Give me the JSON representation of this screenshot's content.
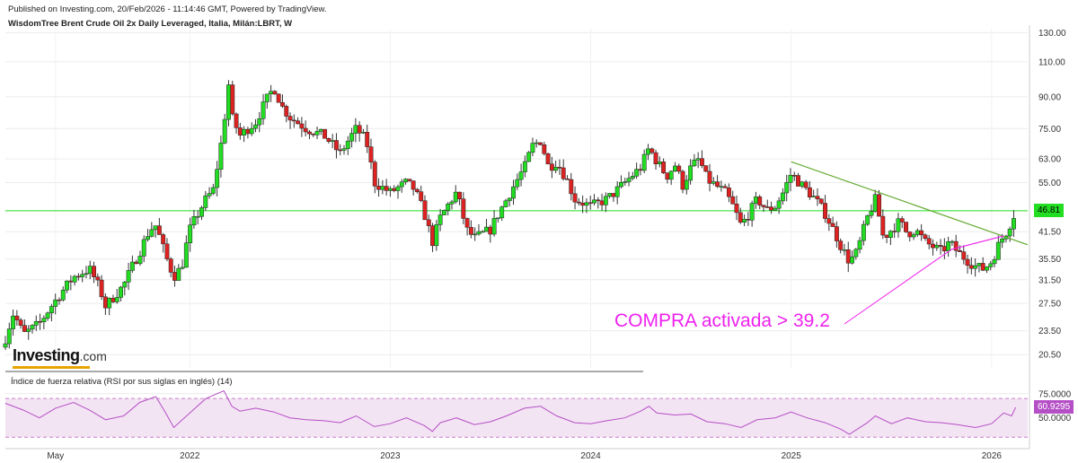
{
  "header": {
    "published": "Published on Investing.com, 20/Feb/2026 - 11:14:46 GMT, Powered by TradingView.",
    "instrument": "WisdomTree Brent Crude Oil 2x Daily Leveraged, Italia, Milán:LBRT, W"
  },
  "logo": {
    "brand": "Investing",
    "dotcom": ".com"
  },
  "annotation": {
    "text": "COMPRA activada > 39.2",
    "color": "#ee22ee"
  },
  "price_badge": "46.81",
  "rsi_badge": "60.9295",
  "rsi_title": "Índice de fuerza relativa (RSI por sus siglas en inglés) (14)",
  "colors": {
    "up": "#22dd22",
    "down": "#dd2222",
    "wick": "#333333",
    "rsi_line": "#b54fc6",
    "rsi_band": "#f3e4f3",
    "hline": "#22dd22",
    "trend_down": "#66aa33",
    "trend_up": "#ee22ee"
  },
  "chart_data": [
    {
      "type": "line",
      "title": "WisdomTree Brent Crude Oil 2x Daily Leveraged, Italia, Milán:LBRT, W",
      "scale": "log",
      "y_ticks": [
        20.5,
        23.5,
        27.5,
        31.5,
        35.5,
        41.5,
        46.81,
        55.0,
        63.0,
        75.0,
        90.0,
        110.0,
        130.0
      ],
      "y_tick_labels": [
        "20.50",
        "23.50",
        "27.50",
        "31.50",
        "35.50",
        "41.50",
        "46.81",
        "55.00",
        "63.00",
        "75.00",
        "90.00",
        "110.00",
        "130.00"
      ],
      "x_tick_labels": [
        "May",
        "2022",
        "2023",
        "2024",
        "2025",
        "2026"
      ],
      "x_tick_times": [
        2021.33,
        2022.0,
        2023.0,
        2024.0,
        2025.0,
        2026.0
      ],
      "x_range": [
        2021.08,
        2026.18
      ],
      "y_range": [
        19.0,
        133.0
      ],
      "series": [
        {
          "values": [
            [
              2021.08,
              22.5
            ],
            [
              2021.12,
              26.0
            ],
            [
              2021.17,
              23.0
            ],
            [
              2021.25,
              24.5
            ],
            [
              2021.33,
              28.0
            ],
            [
              2021.42,
              32.0
            ],
            [
              2021.5,
              33.5
            ],
            [
              2021.55,
              30.0
            ],
            [
              2021.58,
              27.0
            ],
            [
              2021.67,
              30.5
            ],
            [
              2021.75,
              37.0
            ],
            [
              2021.8,
              42.0
            ],
            [
              2021.83,
              43.0
            ],
            [
              2021.88,
              36.0
            ],
            [
              2021.92,
              32.0
            ],
            [
              2021.96,
              34.0
            ],
            [
              2022.0,
              42.0
            ],
            [
              2022.08,
              50.0
            ],
            [
              2022.12,
              53.0
            ],
            [
              2022.17,
              75.0
            ],
            [
              2022.19,
              100.0
            ],
            [
              2022.21,
              80.0
            ],
            [
              2022.25,
              72.0
            ],
            [
              2022.33,
              78.0
            ],
            [
              2022.38,
              88.0
            ],
            [
              2022.42,
              95.0
            ],
            [
              2022.46,
              85.0
            ],
            [
              2022.5,
              80.0
            ],
            [
              2022.58,
              75.0
            ],
            [
              2022.67,
              72.0
            ],
            [
              2022.75,
              65.0
            ],
            [
              2022.83,
              75.0
            ],
            [
              2022.88,
              70.0
            ],
            [
              2022.92,
              55.0
            ],
            [
              2023.0,
              52.0
            ],
            [
              2023.08,
              55.0
            ],
            [
              2023.12,
              53.0
            ],
            [
              2023.17,
              46.0
            ],
            [
              2023.21,
              39.0
            ],
            [
              2023.25,
              45.0
            ],
            [
              2023.33,
              52.0
            ],
            [
              2023.38,
              42.0
            ],
            [
              2023.42,
              40.0
            ],
            [
              2023.5,
              42.0
            ],
            [
              2023.58,
              50.0
            ],
            [
              2023.67,
              60.0
            ],
            [
              2023.71,
              68.0
            ],
            [
              2023.75,
              70.0
            ],
            [
              2023.79,
              60.0
            ],
            [
              2023.83,
              62.0
            ],
            [
              2023.88,
              56.0
            ],
            [
              2023.92,
              50.0
            ],
            [
              2024.0,
              48.0
            ],
            [
              2024.08,
              50.0
            ],
            [
              2024.12,
              52.0
            ],
            [
              2024.17,
              55.0
            ],
            [
              2024.25,
              60.0
            ],
            [
              2024.29,
              67.0
            ],
            [
              2024.33,
              62.0
            ],
            [
              2024.38,
              57.0
            ],
            [
              2024.42,
              61.0
            ],
            [
              2024.46,
              54.0
            ],
            [
              2024.5,
              60.0
            ],
            [
              2024.54,
              63.0
            ],
            [
              2024.58,
              56.0
            ],
            [
              2024.67,
              52.0
            ],
            [
              2024.71,
              48.0
            ],
            [
              2024.75,
              43.0
            ],
            [
              2024.79,
              46.0
            ],
            [
              2024.83,
              50.0
            ],
            [
              2024.88,
              47.0
            ],
            [
              2024.92,
              48.0
            ],
            [
              2024.96,
              52.0
            ],
            [
              2025.0,
              58.0
            ],
            [
              2025.04,
              55.0
            ],
            [
              2025.12,
              50.0
            ],
            [
              2025.17,
              46.0
            ],
            [
              2025.21,
              42.0
            ],
            [
              2025.25,
              38.0
            ],
            [
              2025.29,
              35.0
            ],
            [
              2025.33,
              37.0
            ],
            [
              2025.38,
              45.0
            ],
            [
              2025.42,
              50.0
            ],
            [
              2025.46,
              40.0
            ],
            [
              2025.5,
              42.0
            ],
            [
              2025.54,
              44.0
            ],
            [
              2025.58,
              41.0
            ],
            [
              2025.62,
              42.0
            ],
            [
              2025.67,
              39.0
            ],
            [
              2025.71,
              38.0
            ],
            [
              2025.75,
              37.0
            ],
            [
              2025.79,
              39.0
            ],
            [
              2025.83,
              37.0
            ],
            [
              2025.87,
              35.5
            ],
            [
              2025.92,
              34.0
            ],
            [
              2025.96,
              33.5
            ],
            [
              2026.0,
              35.0
            ],
            [
              2026.04,
              39.0
            ],
            [
              2026.08,
              42.0
            ],
            [
              2026.12,
              46.81
            ]
          ]
        }
      ],
      "horizontal_line": 46.81,
      "trendlines": [
        {
          "name": "downtrend",
          "points": [
            [
              2025.0,
              62.0
            ],
            [
              2026.18,
              38.5
            ]
          ]
        },
        {
          "name": "uptrend",
          "points": [
            [
              2025.8,
              37.5
            ],
            [
              2026.06,
              40.5
            ]
          ]
        }
      ],
      "annotations": [
        "COMPRA activada > 39.2"
      ]
    },
    {
      "type": "line",
      "title": "Índice de fuerza relativa (RSI por sus siglas en inglés) (14)",
      "y_ticks": [
        50.0,
        75.0
      ],
      "y_tick_labels": [
        "50.0000",
        "75.0000"
      ],
      "y_range": [
        20.0,
        85.0
      ],
      "band": [
        30.0,
        70.0
      ],
      "last_value": 60.9295,
      "series": [
        {
          "values": [
            [
              2021.08,
              65
            ],
            [
              2021.17,
              58
            ],
            [
              2021.25,
              50
            ],
            [
              2021.33,
              60
            ],
            [
              2021.42,
              66
            ],
            [
              2021.5,
              58
            ],
            [
              2021.58,
              48
            ],
            [
              2021.67,
              52
            ],
            [
              2021.75,
              66
            ],
            [
              2021.83,
              72
            ],
            [
              2021.88,
              55
            ],
            [
              2021.92,
              40
            ],
            [
              2022.0,
              55
            ],
            [
              2022.08,
              70
            ],
            [
              2022.17,
              78
            ],
            [
              2022.21,
              62
            ],
            [
              2022.25,
              57
            ],
            [
              2022.33,
              60
            ],
            [
              2022.42,
              56
            ],
            [
              2022.5,
              50
            ],
            [
              2022.58,
              48
            ],
            [
              2022.67,
              47
            ],
            [
              2022.75,
              45
            ],
            [
              2022.83,
              52
            ],
            [
              2022.92,
              41
            ],
            [
              2023.0,
              44
            ],
            [
              2023.08,
              50
            ],
            [
              2023.17,
              42
            ],
            [
              2023.21,
              36
            ],
            [
              2023.25,
              45
            ],
            [
              2023.33,
              50
            ],
            [
              2023.42,
              43
            ],
            [
              2023.5,
              46
            ],
            [
              2023.58,
              52
            ],
            [
              2023.67,
              60
            ],
            [
              2023.75,
              62
            ],
            [
              2023.83,
              52
            ],
            [
              2023.92,
              45
            ],
            [
              2024.0,
              44
            ],
            [
              2024.08,
              47
            ],
            [
              2024.17,
              50
            ],
            [
              2024.25,
              57
            ],
            [
              2024.29,
              62
            ],
            [
              2024.33,
              55
            ],
            [
              2024.42,
              53
            ],
            [
              2024.5,
              54
            ],
            [
              2024.58,
              46
            ],
            [
              2024.67,
              44
            ],
            [
              2024.75,
              40
            ],
            [
              2024.83,
              48
            ],
            [
              2024.92,
              50
            ],
            [
              2025.0,
              56
            ],
            [
              2025.08,
              50
            ],
            [
              2025.17,
              45
            ],
            [
              2025.25,
              38
            ],
            [
              2025.29,
              33
            ],
            [
              2025.38,
              45
            ],
            [
              2025.42,
              52
            ],
            [
              2025.5,
              44
            ],
            [
              2025.58,
              50
            ],
            [
              2025.67,
              46
            ],
            [
              2025.75,
              45
            ],
            [
              2025.83,
              43
            ],
            [
              2025.92,
              40
            ],
            [
              2026.0,
              44
            ],
            [
              2026.06,
              55
            ],
            [
              2026.1,
              52
            ],
            [
              2026.12,
              60.9295
            ]
          ]
        }
      ]
    }
  ]
}
